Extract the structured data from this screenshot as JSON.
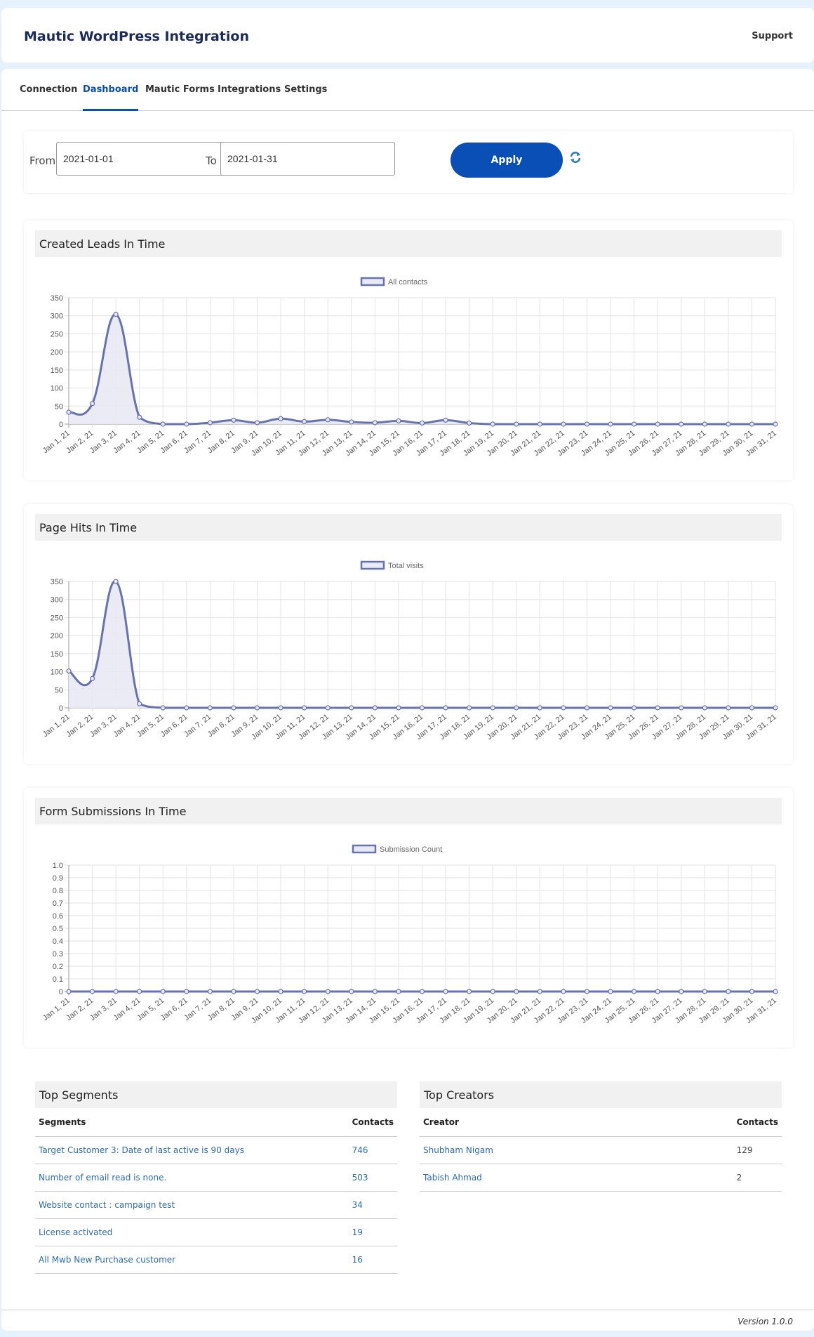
{
  "header": {
    "title": "Mautic WordPress Integration",
    "support_label": "Support"
  },
  "tabs": [
    {
      "label": "Connection",
      "active": false
    },
    {
      "label": "Dashboard",
      "active": true
    },
    {
      "label": "Mautic Forms",
      "active": false
    },
    {
      "label": "Integrations",
      "active": false
    },
    {
      "label": "Settings",
      "active": false
    }
  ],
  "filter": {
    "from_label": "From",
    "from_value": "2021-01-01",
    "to_label": "To",
    "to_value": "2021-01-31",
    "apply_label": "Apply",
    "refresh_icon": "refresh-icon"
  },
  "colors": {
    "accent": "#0a4fb5",
    "series_line": "#6773b1",
    "series_fill": "#e8e9f4",
    "link": "#2a6cb0"
  },
  "chart_data": [
    {
      "type": "line",
      "title": "Created Leads In Time",
      "legend": [
        "All contacts"
      ],
      "categories": [
        "Jan 1, 21",
        "Jan 2, 21",
        "Jan 3, 21",
        "Jan 4, 21",
        "Jan 5, 21",
        "Jan 6, 21",
        "Jan 7, 21",
        "Jan 8, 21",
        "Jan 9, 21",
        "Jan 10, 21",
        "Jan 11, 21",
        "Jan 12, 21",
        "Jan 13, 21",
        "Jan 14, 21",
        "Jan 15, 21",
        "Jan 16, 21",
        "Jan 17, 21",
        "Jan 18, 21",
        "Jan 19, 21",
        "Jan 20, 21",
        "Jan 21, 21",
        "Jan 22, 21",
        "Jan 23, 21",
        "Jan 24, 21",
        "Jan 25, 21",
        "Jan 26, 21",
        "Jan 27, 21",
        "Jan 28, 21",
        "Jan 29, 21",
        "Jan 30, 21",
        "Jan 31, 21"
      ],
      "series": [
        {
          "name": "All contacts",
          "values": [
            33,
            57,
            304,
            19,
            0,
            0,
            4,
            11,
            4,
            15,
            7,
            12,
            6,
            4,
            9,
            3,
            11,
            3,
            0,
            0,
            0,
            0,
            0,
            0,
            0,
            0,
            0,
            0,
            0,
            0,
            0
          ]
        }
      ],
      "yticks": [
        "0",
        "50",
        "100",
        "150",
        "200",
        "250",
        "300",
        "350"
      ],
      "ylim": [
        0,
        350
      ],
      "grid": true,
      "legend_position": "top"
    },
    {
      "type": "line",
      "title": "Page Hits In Time",
      "legend": [
        "Total visits"
      ],
      "categories": [
        "Jan 1, 21",
        "Jan 2, 21",
        "Jan 3, 21",
        "Jan 4, 21",
        "Jan 5, 21",
        "Jan 6, 21",
        "Jan 7, 21",
        "Jan 8, 21",
        "Jan 9, 21",
        "Jan 10, 21",
        "Jan 11, 21",
        "Jan 12, 21",
        "Jan 13, 21",
        "Jan 14, 21",
        "Jan 15, 21",
        "Jan 16, 21",
        "Jan 17, 21",
        "Jan 18, 21",
        "Jan 19, 21",
        "Jan 20, 21",
        "Jan 21, 21",
        "Jan 22, 21",
        "Jan 23, 21",
        "Jan 24, 21",
        "Jan 25, 21",
        "Jan 26, 21",
        "Jan 27, 21",
        "Jan 28, 21",
        "Jan 29, 21",
        "Jan 30, 21",
        "Jan 31, 21"
      ],
      "series": [
        {
          "name": "Total visits",
          "values": [
            102,
            81,
            350,
            11,
            0,
            0,
            0,
            0,
            0,
            0,
            0,
            0,
            0,
            0,
            0,
            0,
            0,
            0,
            0,
            0,
            0,
            0,
            0,
            0,
            0,
            0,
            0,
            0,
            0,
            0,
            0
          ]
        }
      ],
      "yticks": [
        "0",
        "50",
        "100",
        "150",
        "200",
        "250",
        "300",
        "350"
      ],
      "ylim": [
        0,
        350
      ],
      "grid": true,
      "legend_position": "top"
    },
    {
      "type": "line",
      "title": "Form Submissions In Time",
      "legend": [
        "Submission Count"
      ],
      "categories": [
        "Jan 1, 21",
        "Jan 2, 21",
        "Jan 3, 21",
        "Jan 4, 21",
        "Jan 5, 21",
        "Jan 6, 21",
        "Jan 7, 21",
        "Jan 8, 21",
        "Jan 9, 21",
        "Jan 10, 21",
        "Jan 11, 21",
        "Jan 12, 21",
        "Jan 13, 21",
        "Jan 14, 21",
        "Jan 15, 21",
        "Jan 16, 21",
        "Jan 17, 21",
        "Jan 18, 21",
        "Jan 19, 21",
        "Jan 20, 21",
        "Jan 21, 21",
        "Jan 22, 21",
        "Jan 23, 21",
        "Jan 24, 21",
        "Jan 25, 21",
        "Jan 26, 21",
        "Jan 27, 21",
        "Jan 28, 21",
        "Jan 29, 21",
        "Jan 30, 21",
        "Jan 31, 21"
      ],
      "series": [
        {
          "name": "Submission Count",
          "values": [
            0,
            0,
            0,
            0,
            0,
            0,
            0,
            0,
            0,
            0,
            0,
            0,
            0,
            0,
            0,
            0,
            0,
            0,
            0,
            0,
            0,
            0,
            0,
            0,
            0,
            0,
            0,
            0,
            0,
            0,
            0
          ]
        }
      ],
      "yticks": [
        "0",
        "0.1",
        "0.2",
        "0.3",
        "0.4",
        "0.5",
        "0.6",
        "0.7",
        "0.8",
        "0.9",
        "1.0"
      ],
      "ylim": [
        0,
        1
      ],
      "grid": true,
      "legend_position": "top"
    }
  ],
  "top_segments": {
    "title": "Top Segments",
    "columns": [
      "Segments",
      "Contacts"
    ],
    "rows": [
      {
        "name": "Target Customer 3: Date of last active is 90 days",
        "contacts": "746"
      },
      {
        "name": "Number of email read is none.",
        "contacts": "503"
      },
      {
        "name": "Website contact : campaign test",
        "contacts": "34"
      },
      {
        "name": "License activated",
        "contacts": "19"
      },
      {
        "name": "All Mwb New Purchase customer",
        "contacts": "16"
      }
    ]
  },
  "top_creators": {
    "title": "Top Creators",
    "columns": [
      "Creator",
      "Contacts"
    ],
    "rows": [
      {
        "name": "Shubham Nigam",
        "contacts": "129"
      },
      {
        "name": "Tabish Ahmad",
        "contacts": "2"
      }
    ]
  },
  "footer": {
    "version": "Version 1.0.0"
  }
}
